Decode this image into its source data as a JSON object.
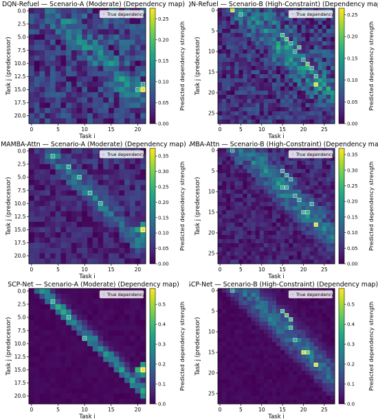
{
  "figure": {
    "colormap": "viridis",
    "marker_color": "#a6b6f2",
    "max_color": "#fde725"
  },
  "chart_data": [
    {
      "type": "heatmap",
      "title": "DQN-Refuel — Scenario-A (Moderate) (Dependency map)",
      "xlabel": "Task i",
      "ylabel": "Task j (predecessor)",
      "colorbar_label": "Predicted dependency strength",
      "legend": "True dependency",
      "legend_position": "top-right",
      "n": 22,
      "x_ticks": [
        "0",
        "5",
        "10",
        "15",
        "20"
      ],
      "x_tick_values": [
        0,
        5,
        10,
        15,
        20
      ],
      "y_ticks": [
        "0.0",
        "2.5",
        "5.0",
        "7.5",
        "10.0",
        "12.5",
        "15.0",
        "17.5",
        "20.0"
      ],
      "y_tick_values": [
        0,
        2.5,
        5,
        7.5,
        10,
        12.5,
        15,
        17.5,
        20
      ],
      "cbar_ticks": [
        "0.00",
        "0.05",
        "0.10",
        "0.15",
        "0.20",
        "0.25"
      ],
      "cbar_tick_values": [
        0,
        0.05,
        0.1,
        0.15,
        0.2,
        0.25
      ],
      "vmax": 0.275,
      "noise": 0.11,
      "band": 0.05,
      "band_offset": 4,
      "band_spread": 2.5,
      "seed": 11,
      "true_dependencies": [
        [
          21,
          15
        ],
        [
          20,
          15
        ],
        [
          21,
          14
        ]
      ],
      "hotspots": [
        {
          "i": 21,
          "j": 15,
          "value": 0.27
        },
        {
          "i": 20,
          "j": 15,
          "value": 0.16
        },
        {
          "i": 21,
          "j": 14,
          "value": 0.14
        },
        {
          "i": 20,
          "j": 14,
          "value": 0.12
        }
      ]
    },
    {
      "type": "heatmap",
      "title": "DQN-Refuel — Scenario-B (High-Constraint) (Dependency map)",
      "xlabel": "Task i",
      "ylabel": "Task j (predecessor)",
      "colorbar_label": "Predicted dependency strength",
      "legend": "True dependency",
      "legend_position": "top-right",
      "n": 28,
      "x_ticks": [
        "0",
        "5",
        "10",
        "15",
        "20",
        "25"
      ],
      "x_tick_values": [
        0,
        5,
        10,
        15,
        20,
        25
      ],
      "y_ticks": [
        "0",
        "5",
        "10",
        "15",
        "20",
        "25"
      ],
      "y_tick_values": [
        0,
        5,
        10,
        15,
        20,
        25
      ],
      "cbar_ticks": [
        "0.00",
        "0.05",
        "0.10",
        "0.15",
        "0.20",
        "0.25"
      ],
      "cbar_tick_values": [
        0,
        0.05,
        0.1,
        0.15,
        0.2,
        0.25
      ],
      "vmax": 0.265,
      "noise": 0.1,
      "band": 0.07,
      "band_offset": 6,
      "band_spread": 4,
      "seed": 23,
      "true_dependencies": [
        [
          3,
          0
        ],
        [
          5,
          1
        ],
        [
          15,
          6
        ],
        [
          16,
          7
        ],
        [
          17,
          8
        ],
        [
          19,
          9
        ],
        [
          21,
          13
        ],
        [
          23,
          16
        ],
        [
          23,
          18
        ],
        [
          22,
          14
        ],
        [
          18,
          10
        ],
        [
          20,
          12
        ]
      ],
      "hotspots": [
        {
          "i": 3,
          "j": 0,
          "value": 0.25
        },
        {
          "i": 23,
          "j": 18,
          "value": 0.26
        },
        {
          "i": 21,
          "j": 13,
          "value": 0.2
        },
        {
          "i": 16,
          "j": 7,
          "value": 0.19
        },
        {
          "i": 15,
          "j": 6,
          "value": 0.17
        },
        {
          "i": 19,
          "j": 9,
          "value": 0.18
        },
        {
          "i": 23,
          "j": 16,
          "value": 0.17
        },
        {
          "i": 5,
          "j": 1,
          "value": 0.15
        }
      ]
    },
    {
      "type": "heatmap",
      "title": "MAMBA-Attn — Scenario-A (Moderate) (Dependency map)",
      "xlabel": "Task i",
      "ylabel": "Task j (predecessor)",
      "colorbar_label": "Predicted dependency strength",
      "legend": "True dependency",
      "legend_position": "top-right",
      "n": 22,
      "x_ticks": [
        "0",
        "5",
        "10",
        "15",
        "20"
      ],
      "x_tick_values": [
        0,
        5,
        10,
        15,
        20
      ],
      "y_ticks": [
        "0.0",
        "2.5",
        "5.0",
        "7.5",
        "10.0",
        "12.5",
        "15.0",
        "17.5",
        "20.0"
      ],
      "y_tick_values": [
        0,
        2.5,
        5,
        7.5,
        10,
        12.5,
        15,
        17.5,
        20
      ],
      "cbar_ticks": [
        "0.00",
        "0.05",
        "0.10",
        "0.15",
        "0.20",
        "0.25",
        "0.30",
        "0.35"
      ],
      "cbar_tick_values": [
        0,
        0.05,
        0.1,
        0.15,
        0.2,
        0.25,
        0.3,
        0.35
      ],
      "vmax": 0.375,
      "noise": 0.09,
      "band": 0.11,
      "band_offset": 3,
      "band_spread": 2.0,
      "seed": 37,
      "true_dependencies": [
        [
          4,
          1
        ],
        [
          7,
          3
        ],
        [
          9,
          5
        ],
        [
          11,
          8
        ],
        [
          13,
          10
        ],
        [
          21,
          15
        ]
      ],
      "hotspots": [
        {
          "i": 21,
          "j": 15,
          "value": 0.37
        },
        {
          "i": 20,
          "j": 15,
          "value": 0.22
        },
        {
          "i": 21,
          "j": 14,
          "value": 0.2
        },
        {
          "i": 21,
          "j": 16,
          "value": 0.18
        }
      ]
    },
    {
      "type": "heatmap",
      "title": "MAMBA-Attn — Scenario-B (High-Constraint) (Dependency map)",
      "xlabel": "Task i",
      "ylabel": "Task j (predecessor)",
      "colorbar_label": "Predicted dependency strength",
      "legend": "True dependency",
      "legend_position": "top-right",
      "n": 28,
      "x_ticks": [
        "0",
        "5",
        "10",
        "15",
        "20",
        "25"
      ],
      "x_tick_values": [
        0,
        5,
        10,
        15,
        20,
        25
      ],
      "y_ticks": [
        "0",
        "5",
        "10",
        "15",
        "20",
        "25"
      ],
      "y_tick_values": [
        0,
        5,
        10,
        15,
        20,
        25
      ],
      "cbar_ticks": [
        "0.00",
        "0.05",
        "0.10",
        "0.15",
        "0.20",
        "0.25",
        "0.30",
        "0.35"
      ],
      "cbar_tick_values": [
        0,
        0.05,
        0.1,
        0.15,
        0.2,
        0.25,
        0.3,
        0.35
      ],
      "vmax": 0.37,
      "noise": 0.085,
      "band": 0.12,
      "band_offset": 6,
      "band_spread": 4,
      "seed": 53,
      "true_dependencies": [
        [
          3,
          0
        ],
        [
          15,
          5
        ],
        [
          16,
          6
        ],
        [
          17,
          7
        ],
        [
          15,
          9
        ],
        [
          16,
          9
        ],
        [
          20,
          15
        ],
        [
          21,
          15
        ],
        [
          23,
          18
        ],
        [
          22,
          13
        ],
        [
          18,
          11
        ],
        [
          19,
          12
        ]
      ],
      "hotspots": [
        {
          "i": 23,
          "j": 18,
          "value": 0.36
        },
        {
          "i": 20,
          "j": 15,
          "value": 0.24
        },
        {
          "i": 21,
          "j": 15,
          "value": 0.22
        },
        {
          "i": 16,
          "j": 6,
          "value": 0.22
        },
        {
          "i": 15,
          "j": 9,
          "value": 0.2
        },
        {
          "i": 17,
          "j": 7,
          "value": 0.19
        },
        {
          "i": 3,
          "j": 0,
          "value": 0.18
        }
      ]
    },
    {
      "type": "heatmap",
      "title": "SCP-Net — Scenario-A (Moderate) (Dependency map)",
      "xlabel": "Task i",
      "ylabel": "Task j (predecessor)",
      "colorbar_label": "Predicted dependency strength",
      "legend": "True dependency",
      "legend_position": "top-right",
      "n": 22,
      "x_ticks": [
        "0",
        "5",
        "10",
        "15",
        "20"
      ],
      "x_tick_values": [
        0,
        5,
        10,
        15,
        20
      ],
      "y_ticks": [
        "0.0",
        "2.5",
        "5.0",
        "7.5",
        "10.0",
        "12.5",
        "15.0",
        "17.5",
        "20.0"
      ],
      "y_tick_values": [
        0,
        2.5,
        5,
        7.5,
        10,
        12.5,
        15,
        17.5,
        20
      ],
      "cbar_ticks": [
        "0.0",
        "0.1",
        "0.2",
        "0.3",
        "0.4",
        "0.5"
      ],
      "cbar_tick_values": [
        0,
        0.1,
        0.2,
        0.3,
        0.4,
        0.5
      ],
      "vmax": 0.58,
      "noise": 0.025,
      "band": 0.3,
      "band_offset": 2,
      "band_spread": 1.6,
      "seed": 71,
      "true_dependencies": [
        [
          4,
          2
        ],
        [
          7,
          5
        ],
        [
          10,
          9
        ],
        [
          21,
          15
        ]
      ],
      "hotspots": [
        {
          "i": 21,
          "j": 15,
          "value": 0.58
        },
        {
          "i": 20,
          "j": 15,
          "value": 0.38
        },
        {
          "i": 21,
          "j": 14,
          "value": 0.32
        },
        {
          "i": 21,
          "j": 16,
          "value": 0.3
        },
        {
          "i": 20,
          "j": 16,
          "value": 0.22
        }
      ]
    },
    {
      "type": "heatmap",
      "title": "SCP-Net — Scenario-B (High-Constraint) (Dependency map)",
      "xlabel": "Task i",
      "ylabel": "Task j (predecessor)",
      "colorbar_label": "Predicted dependency strength",
      "legend": "True dependency",
      "legend_position": "top-right",
      "n": 28,
      "x_ticks": [
        "0",
        "5",
        "10",
        "15",
        "20",
        "25"
      ],
      "x_tick_values": [
        0,
        5,
        10,
        15,
        20,
        25
      ],
      "y_ticks": [
        "0",
        "5",
        "10",
        "15",
        "20",
        "25"
      ],
      "y_tick_values": [
        0,
        5,
        10,
        15,
        20,
        25
      ],
      "cbar_ticks": [
        "0.0",
        "0.1",
        "0.2",
        "0.3",
        "0.4",
        "0.5"
      ],
      "cbar_tick_values": [
        0,
        0.1,
        0.2,
        0.3,
        0.4,
        0.5
      ],
      "vmax": 0.58,
      "noise": 0.03,
      "band": 0.22,
      "band_offset": 6,
      "band_spread": 4,
      "seed": 89,
      "true_dependencies": [
        [
          3,
          0
        ],
        [
          15,
          5
        ],
        [
          16,
          6
        ],
        [
          17,
          7
        ],
        [
          17,
          9
        ],
        [
          20,
          15
        ],
        [
          21,
          15
        ],
        [
          23,
          18
        ],
        [
          18,
          12
        ]
      ],
      "hotspots": [
        {
          "i": 23,
          "j": 18,
          "value": 0.57
        },
        {
          "i": 20,
          "j": 15,
          "value": 0.55
        },
        {
          "i": 21,
          "j": 15,
          "value": 0.45
        },
        {
          "i": 16,
          "j": 6,
          "value": 0.42
        },
        {
          "i": 17,
          "j": 7,
          "value": 0.4
        },
        {
          "i": 15,
          "j": 5,
          "value": 0.38
        },
        {
          "i": 17,
          "j": 9,
          "value": 0.36
        },
        {
          "i": 3,
          "j": 0,
          "value": 0.3
        }
      ]
    }
  ]
}
